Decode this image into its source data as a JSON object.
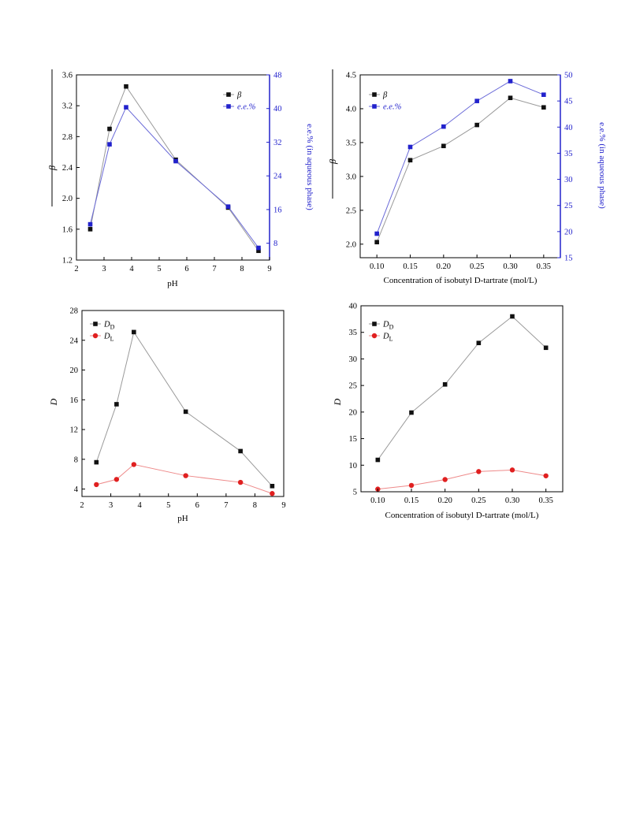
{
  "chart_data": [
    {
      "type": "line",
      "xlabel": "pH",
      "ylabel": "β",
      "y2label": "e.e.% (in aqueous phase)",
      "xlim": [
        2,
        9
      ],
      "ylim": [
        1.2,
        3.6
      ],
      "y2lim": [
        4,
        48
      ],
      "xticks": [
        2,
        3,
        4,
        5,
        6,
        7,
        8,
        9
      ],
      "yticks": [
        1.2,
        1.6,
        2.0,
        2.4,
        2.8,
        3.2,
        3.6
      ],
      "y2ticks": [
        8,
        16,
        24,
        32,
        40,
        48
      ],
      "ytick_decimals": 1,
      "xtick_decimals": 0,
      "legend_position": "top-right",
      "series": [
        {
          "name": "β",
          "axis": "left",
          "marker": "square",
          "color": "#111111",
          "line_color": "#9a9a9a",
          "x": [
            2.5,
            3.2,
            3.8,
            5.6,
            7.5,
            8.6
          ],
          "y": [
            1.6,
            2.9,
            3.45,
            2.5,
            1.88,
            1.32
          ]
        },
        {
          "name": "e.e.%",
          "axis": "right",
          "marker": "square",
          "color": "#2222cc",
          "line_color": "#6a6ad8",
          "x": [
            2.5,
            3.2,
            3.8,
            5.6,
            7.5,
            8.6
          ],
          "y": [
            12.5,
            31.5,
            40.3,
            27.5,
            16.7,
            6.9
          ]
        }
      ]
    },
    {
      "type": "line",
      "xlabel": "Concentration of isobutyl D-tartrate (mol/L)",
      "ylabel": "β",
      "y2label": "e.e.% (in aqueous phase)",
      "xlim": [
        0.075,
        0.375
      ],
      "ylim": [
        1.8,
        4.5
      ],
      "y2lim": [
        15,
        50
      ],
      "xticks": [
        0.1,
        0.15,
        0.2,
        0.25,
        0.3,
        0.35
      ],
      "yticks": [
        2.0,
        2.5,
        3.0,
        3.5,
        4.0,
        4.5
      ],
      "y2ticks": [
        15,
        20,
        25,
        30,
        35,
        40,
        45,
        50
      ],
      "ytick_decimals": 1,
      "xtick_decimals": 2,
      "legend_position": "top-left",
      "series": [
        {
          "name": "β",
          "axis": "left",
          "marker": "square",
          "color": "#111111",
          "line_color": "#9a9a9a",
          "x": [
            0.1,
            0.15,
            0.2,
            0.25,
            0.3,
            0.35
          ],
          "y": [
            2.03,
            3.24,
            3.45,
            3.76,
            4.16,
            4.02
          ]
        },
        {
          "name": "e.e.%",
          "axis": "right",
          "marker": "square",
          "color": "#2222cc",
          "line_color": "#6a6ad8",
          "x": [
            0.1,
            0.15,
            0.2,
            0.25,
            0.3,
            0.35
          ],
          "y": [
            19.6,
            36.2,
            40.1,
            45.0,
            48.8,
            46.2
          ]
        }
      ]
    },
    {
      "type": "line",
      "xlabel": "pH",
      "ylabel": "D",
      "xlim": [
        2,
        9
      ],
      "ylim": [
        3,
        28
      ],
      "xticks": [
        2,
        3,
        4,
        5,
        6,
        7,
        8,
        9
      ],
      "yticks": [
        4,
        8,
        12,
        16,
        20,
        24,
        28
      ],
      "ytick_decimals": 0,
      "xtick_decimals": 0,
      "legend_position": "top-left",
      "series": [
        {
          "name": "D",
          "sub": "D",
          "axis": "left",
          "marker": "square",
          "color": "#111111",
          "line_color": "#9a9a9a",
          "x": [
            2.5,
            3.2,
            3.8,
            5.6,
            7.5,
            8.6
          ],
          "y": [
            7.6,
            15.4,
            25.1,
            14.4,
            9.1,
            4.4
          ]
        },
        {
          "name": "D",
          "sub": "L",
          "axis": "left",
          "marker": "circle",
          "color": "#e02020",
          "line_color": "#ee8a8a",
          "x": [
            2.5,
            3.2,
            3.8,
            5.6,
            7.5,
            8.6
          ],
          "y": [
            4.6,
            5.3,
            7.3,
            5.8,
            4.9,
            3.4
          ]
        }
      ]
    },
    {
      "type": "line",
      "xlabel": "Concentration of isobutyl D-tartrate (mol/L)",
      "ylabel": "D",
      "xlim": [
        0.075,
        0.375
      ],
      "ylim": [
        5,
        40
      ],
      "xticks": [
        0.1,
        0.15,
        0.2,
        0.25,
        0.3,
        0.35
      ],
      "yticks": [
        5,
        10,
        15,
        20,
        25,
        30,
        35,
        40
      ],
      "ytick_decimals": 0,
      "xtick_decimals": 2,
      "legend_position": "top-left",
      "series": [
        {
          "name": "D",
          "sub": "D",
          "axis": "left",
          "marker": "square",
          "color": "#111111",
          "line_color": "#9a9a9a",
          "x": [
            0.1,
            0.15,
            0.2,
            0.25,
            0.3,
            0.35
          ],
          "y": [
            11.0,
            19.9,
            25.2,
            33.0,
            38.0,
            32.1
          ]
        },
        {
          "name": "D",
          "sub": "L",
          "axis": "left",
          "marker": "circle",
          "color": "#e02020",
          "line_color": "#ee8a8a",
          "x": [
            0.1,
            0.15,
            0.2,
            0.25,
            0.3,
            0.35
          ],
          "y": [
            5.5,
            6.2,
            7.3,
            8.8,
            9.1,
            8.0
          ]
        }
      ]
    }
  ]
}
